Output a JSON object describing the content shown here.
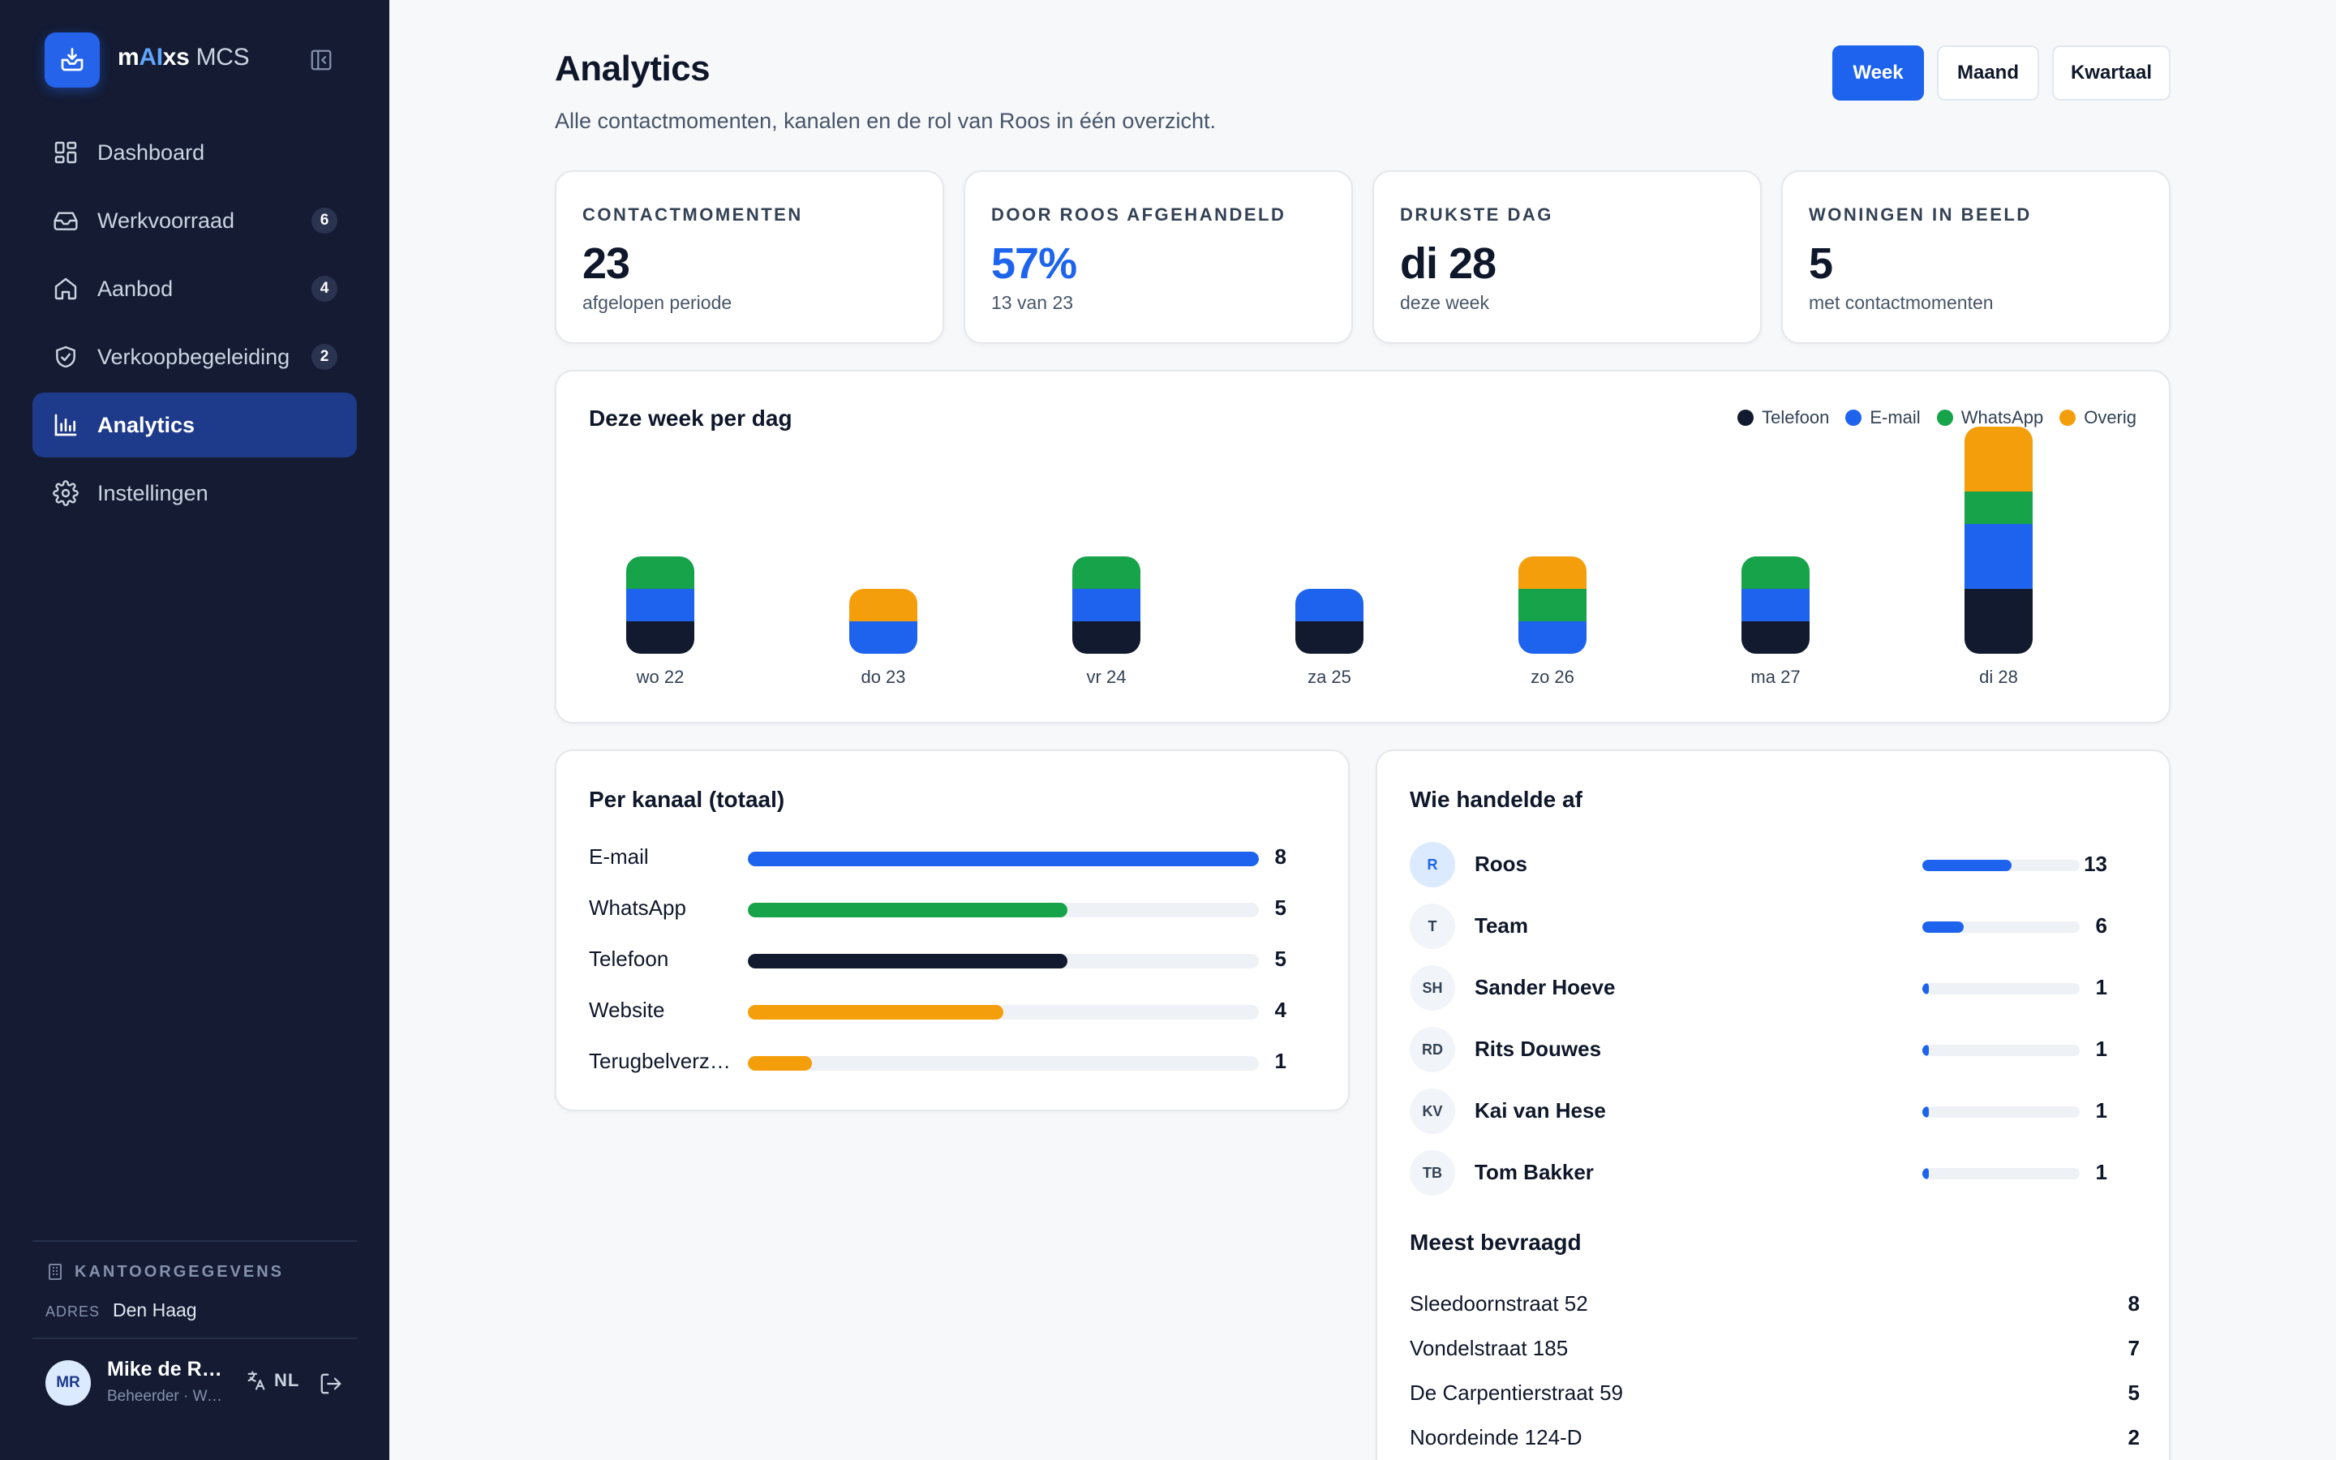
{
  "app": {
    "brand_prefix": "m",
    "brand_ai": "AI",
    "brand_mid": "xs",
    "brand_suffix": "MCS"
  },
  "sidebar": {
    "items": [
      {
        "label": "Dashboard",
        "icon": "dashboard-icon",
        "badge": ""
      },
      {
        "label": "Werkvoorraad",
        "icon": "inbox-icon",
        "badge": "6"
      },
      {
        "label": "Aanbod",
        "icon": "home-icon",
        "badge": "4"
      },
      {
        "label": "Verkoopbegeleiding",
        "icon": "handshake-icon",
        "badge": "2"
      },
      {
        "label": "Analytics",
        "icon": "bar-chart-icon",
        "badge": ""
      },
      {
        "label": "Instellingen",
        "icon": "gear-icon",
        "badge": ""
      }
    ],
    "active_index": 4,
    "office": {
      "heading": "KANTOORGEGEVENS",
      "addr_key": "ADRES",
      "addr_value": "Den Haag"
    },
    "user": {
      "initials": "MR",
      "name": "Mike de Ruiter",
      "role": "Beheerder · Wassenaar"
    },
    "language": "NL"
  },
  "header": {
    "title": "Analytics",
    "subtitle": "Alle contactmomenten, kanalen en de rol van Roos in één overzicht.",
    "periods": [
      "Week",
      "Maand",
      "Kwartaal"
    ],
    "active_period": "Week"
  },
  "kpis": [
    {
      "label": "CONTACTMOMENTEN",
      "value": "23",
      "sub": "afgelopen periode"
    },
    {
      "label": "DOOR ROOS AFGEHANDELD",
      "value": "57%",
      "sub": "13 van 23"
    },
    {
      "label": "DRUKSTE DAG",
      "value": "di 28",
      "sub": "deze week"
    },
    {
      "label": "WONINGEN IN BEELD",
      "value": "5",
      "sub": "met contactmomenten"
    }
  ],
  "week_chart": {
    "title": "Deze week per dag",
    "legend": [
      {
        "name": "Telefoon",
        "color": "#111a2e"
      },
      {
        "name": "E-mail",
        "color": "#1d63ed"
      },
      {
        "name": "WhatsApp",
        "color": "#16a34a"
      },
      {
        "name": "Overig",
        "color": "#f59e0b"
      }
    ]
  },
  "chart_data": {
    "type": "bar",
    "stacked": true,
    "categories": [
      "wo 22",
      "do 23",
      "vr 24",
      "za 25",
      "zo 26",
      "ma 27",
      "di 28"
    ],
    "series": [
      {
        "name": "Telefoon",
        "values": [
          1,
          0,
          1,
          1,
          0,
          1,
          2
        ]
      },
      {
        "name": "E-mail",
        "values": [
          1,
          1,
          1,
          1,
          1,
          1,
          2
        ]
      },
      {
        "name": "WhatsApp",
        "values": [
          1,
          0,
          1,
          0,
          1,
          1,
          1
        ]
      },
      {
        "name": "Overig",
        "values": [
          0,
          1,
          0,
          0,
          1,
          0,
          2
        ]
      }
    ],
    "title": "Deze week per dag",
    "legend_position": "top-right",
    "grid": false
  },
  "channels": {
    "title": "Per kanaal (totaal)",
    "max": 8,
    "rows": [
      {
        "label": "E-mail",
        "value": 8,
        "color": "#1d63ed"
      },
      {
        "label": "WhatsApp",
        "value": 5,
        "color": "#16a34a"
      },
      {
        "label": "Telefoon",
        "value": 5,
        "color": "#111a2e"
      },
      {
        "label": "Website",
        "value": 4,
        "color": "#f59e0b"
      },
      {
        "label": "Terugbelverzoek",
        "value": 1,
        "color": "#f59e0b"
      }
    ]
  },
  "handlers": {
    "title": "Wie handelde af",
    "total": 23,
    "rows": [
      {
        "initials": "R",
        "name": "Roos",
        "value": 13
      },
      {
        "initials": "T",
        "name": "Team",
        "value": 6
      },
      {
        "initials": "SH",
        "name": "Sander Hoeve",
        "value": 1
      },
      {
        "initials": "RD",
        "name": "Rits Douwes",
        "value": 1
      },
      {
        "initials": "KV",
        "name": "Kai van Hese",
        "value": 1
      },
      {
        "initials": "TB",
        "name": "Tom Bakker",
        "value": 1
      }
    ]
  },
  "most_asked": {
    "title": "Meest bevraagd",
    "rows": [
      {
        "address": "Sleedoornstraat 52",
        "value": "8"
      },
      {
        "address": "Vondelstraat 185",
        "value": "7"
      },
      {
        "address": "De Carpentierstraat 59",
        "value": "5"
      },
      {
        "address": "Noordeinde 124-D",
        "value": "2"
      }
    ]
  }
}
